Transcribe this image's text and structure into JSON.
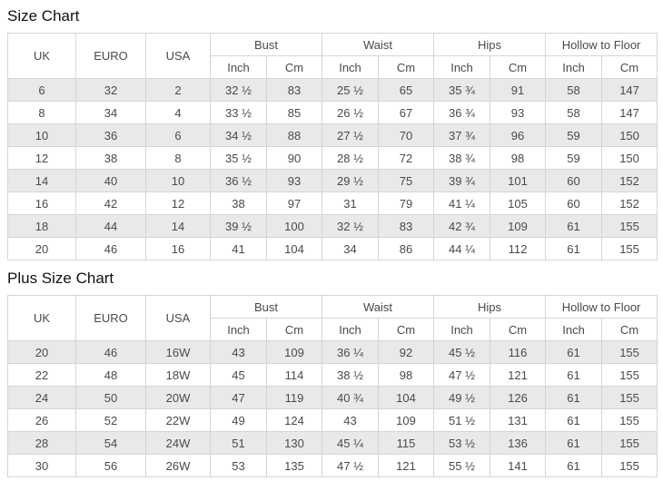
{
  "header": {
    "uk": "UK",
    "euro": "EURO",
    "usa": "USA",
    "groups": [
      "Bust",
      "Waist",
      "Hips",
      "Hollow to Floor"
    ],
    "sub": [
      "Inch",
      "Cm"
    ]
  },
  "sections": [
    {
      "title": "Size Chart",
      "rows": [
        [
          "6",
          "32",
          "2",
          "32 ½",
          "83",
          "25 ½",
          "65",
          "35 ¾",
          "91",
          "58",
          "147"
        ],
        [
          "8",
          "34",
          "4",
          "33 ½",
          "85",
          "26 ½",
          "67",
          "36 ¾",
          "93",
          "58",
          "147"
        ],
        [
          "10",
          "36",
          "6",
          "34 ½",
          "88",
          "27 ½",
          "70",
          "37 ¾",
          "96",
          "59",
          "150"
        ],
        [
          "12",
          "38",
          "8",
          "35 ½",
          "90",
          "28 ½",
          "72",
          "38 ¾",
          "98",
          "59",
          "150"
        ],
        [
          "14",
          "40",
          "10",
          "36 ½",
          "93",
          "29 ½",
          "75",
          "39 ¾",
          "101",
          "60",
          "152"
        ],
        [
          "16",
          "42",
          "12",
          "38",
          "97",
          "31",
          "79",
          "41 ¼",
          "105",
          "60",
          "152"
        ],
        [
          "18",
          "44",
          "14",
          "39 ½",
          "100",
          "32 ½",
          "83",
          "42 ¾",
          "109",
          "61",
          "155"
        ],
        [
          "20",
          "46",
          "16",
          "41",
          "104",
          "34",
          "86",
          "44 ¼",
          "112",
          "61",
          "155"
        ]
      ]
    },
    {
      "title": "Plus Size Chart",
      "rows": [
        [
          "20",
          "46",
          "16W",
          "43",
          "109",
          "36 ¼",
          "92",
          "45 ½",
          "116",
          "61",
          "155"
        ],
        [
          "22",
          "48",
          "18W",
          "45",
          "114",
          "38 ½",
          "98",
          "47 ½",
          "121",
          "61",
          "155"
        ],
        [
          "24",
          "50",
          "20W",
          "47",
          "119",
          "40 ¾",
          "104",
          "49 ½",
          "126",
          "61",
          "155"
        ],
        [
          "26",
          "52",
          "22W",
          "49",
          "124",
          "43",
          "109",
          "51 ½",
          "131",
          "61",
          "155"
        ],
        [
          "28",
          "54",
          "24W",
          "51",
          "130",
          "45 ¼",
          "115",
          "53 ½",
          "136",
          "61",
          "155"
        ],
        [
          "30",
          "56",
          "26W",
          "53",
          "135",
          "47 ½",
          "121",
          "55 ½",
          "141",
          "61",
          "155"
        ]
      ]
    }
  ]
}
